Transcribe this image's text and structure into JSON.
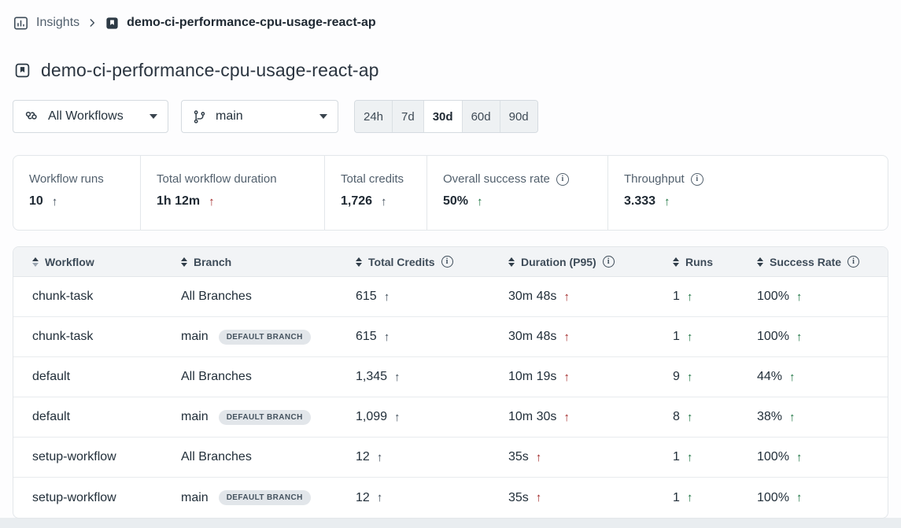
{
  "icons": {
    "trend_up": "↑",
    "info": "i"
  },
  "breadcrumb": {
    "insights_label": "Insights",
    "project_label": "demo-ci-performance-cpu-usage-react-ap"
  },
  "page_title": "demo-ci-performance-cpu-usage-react-ap",
  "filters": {
    "workflow_selected": "All Workflows",
    "branch_selected": "main",
    "time_ranges": [
      {
        "label": "24h",
        "selected": false
      },
      {
        "label": "7d",
        "selected": false
      },
      {
        "label": "30d",
        "selected": true
      },
      {
        "label": "60d",
        "selected": false
      },
      {
        "label": "90d",
        "selected": false
      }
    ]
  },
  "metrics": [
    {
      "label": "Workflow runs",
      "value": "10",
      "trend": "neutral",
      "info": false
    },
    {
      "label": "Total workflow duration",
      "value": "1h 12m",
      "trend": "negative",
      "info": false
    },
    {
      "label": "Total credits",
      "value": "1,726",
      "trend": "neutral",
      "info": false
    },
    {
      "label": "Overall success rate",
      "value": "50%",
      "trend": "positive",
      "info": true
    },
    {
      "label": "Throughput",
      "value": "3.333",
      "trend": "positive",
      "info": true
    }
  ],
  "table": {
    "badge_label": "DEFAULT BRANCH",
    "columns": [
      {
        "label": "Workflow",
        "field": "workflow",
        "info": false,
        "sorted": "asc",
        "trend": null
      },
      {
        "label": "Branch",
        "field": "branch",
        "info": false,
        "sorted": null,
        "trend": null
      },
      {
        "label": "Total Credits",
        "field": "credits",
        "info": true,
        "sorted": null,
        "trend": "neutral"
      },
      {
        "label": "Duration (P95)",
        "field": "duration",
        "info": true,
        "sorted": null,
        "trend": "negative"
      },
      {
        "label": "Runs",
        "field": "runs",
        "info": false,
        "sorted": null,
        "trend": "positive"
      },
      {
        "label": "Success Rate",
        "field": "success",
        "info": true,
        "sorted": null,
        "trend": "positive"
      }
    ],
    "rows": [
      {
        "workflow": "chunk-task",
        "branch": "All Branches",
        "default_badge": false,
        "credits": "615",
        "duration": "30m 48s",
        "runs": "1",
        "success": "100%"
      },
      {
        "workflow": "chunk-task",
        "branch": "main",
        "default_badge": true,
        "credits": "615",
        "duration": "30m 48s",
        "runs": "1",
        "success": "100%"
      },
      {
        "workflow": "default",
        "branch": "All Branches",
        "default_badge": false,
        "credits": "1,345",
        "duration": "10m 19s",
        "runs": "9",
        "success": "44%"
      },
      {
        "workflow": "default",
        "branch": "main",
        "default_badge": true,
        "credits": "1,099",
        "duration": "10m 30s",
        "runs": "8",
        "success": "38%"
      },
      {
        "workflow": "setup-workflow",
        "branch": "All Branches",
        "default_badge": false,
        "credits": "12",
        "duration": "35s",
        "runs": "1",
        "success": "100%"
      },
      {
        "workflow": "setup-workflow",
        "branch": "main",
        "default_badge": true,
        "credits": "12",
        "duration": "35s",
        "runs": "1",
        "success": "100%"
      }
    ]
  },
  "colors": {
    "positive": "#1a7340",
    "negative": "#9e1f1f",
    "neutral": "#3e4c59",
    "header_bg": "#f2f4f6",
    "badge_bg": "#e2e6ea"
  }
}
